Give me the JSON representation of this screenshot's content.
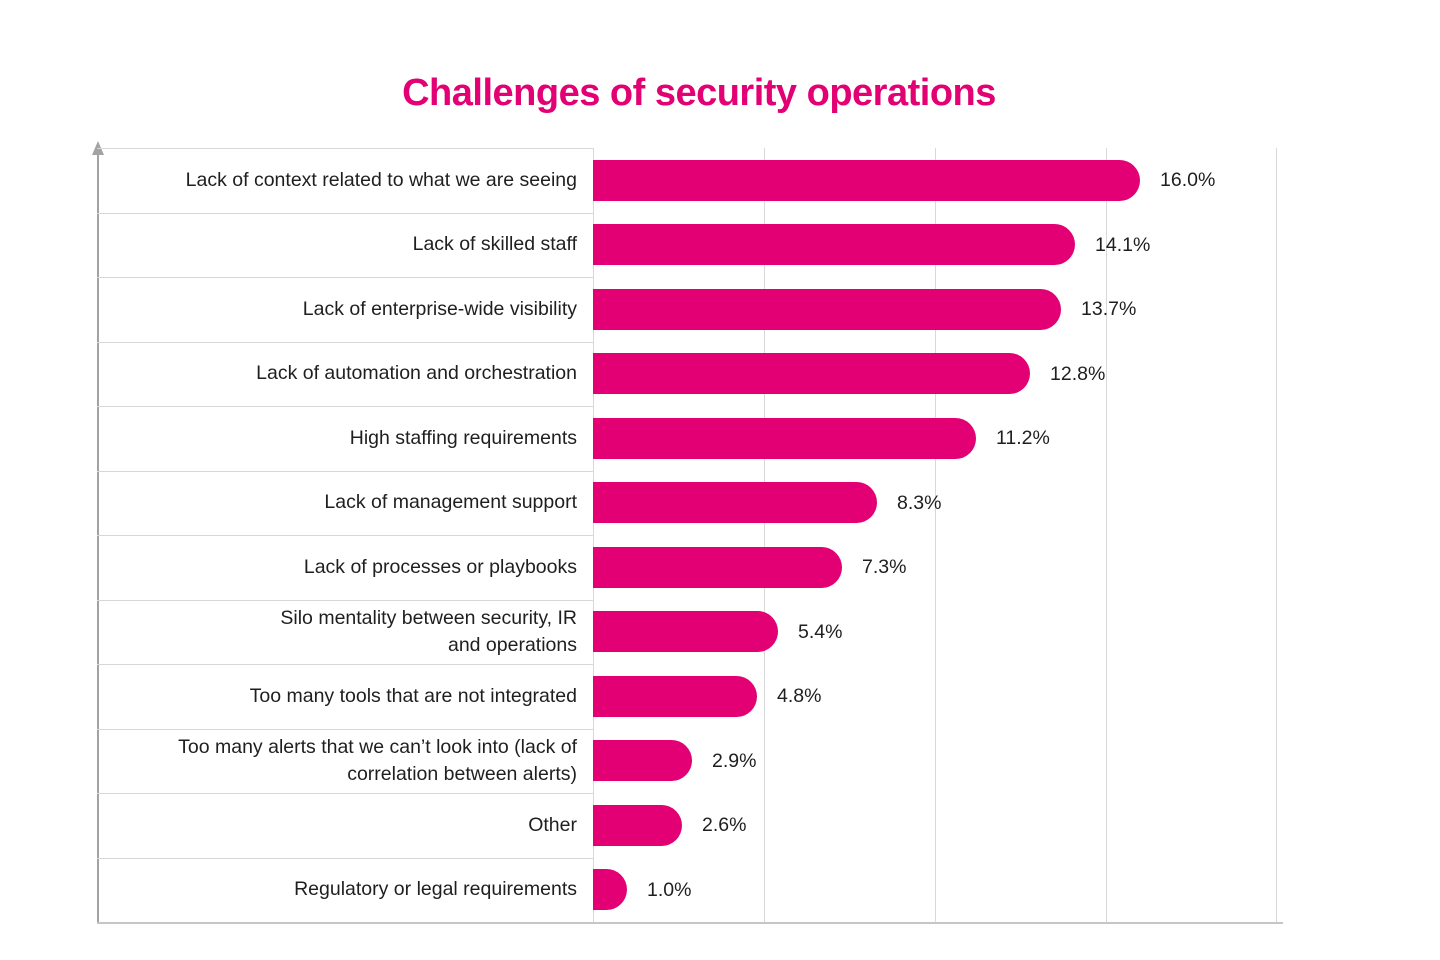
{
  "title": "Challenges of security operations",
  "colors": {
    "accent": "#E20074",
    "text": "#1F1F1F",
    "grid": "#D8D8D8",
    "axis": "#A3A3A3",
    "baseline": "#C6C6C6"
  },
  "chart_data": {
    "type": "bar",
    "orientation": "horizontal",
    "title": "Challenges of security operations",
    "xlabel": "",
    "ylabel": "",
    "xlim": [
      0,
      20
    ],
    "gridlines_pct": [
      0,
      5,
      10,
      15,
      20
    ],
    "grid": "vertical-only",
    "legend": "none",
    "value_suffix": "%",
    "categories": [
      "Lack of context related to what we are seeing",
      "Lack of skilled staff",
      "Lack of enterprise-wide visibility",
      "Lack of automation and orchestration",
      "High staffing requirements",
      "Lack of management support",
      "Lack of processes or playbooks",
      "Silo mentality between security, IR and operations",
      "Too many tools that are not integrated",
      "Too many alerts that we can’t look into (lack of correlation between alerts)",
      "Other",
      "Regulatory or legal requirements"
    ],
    "values": [
      16.0,
      14.1,
      13.7,
      12.8,
      11.2,
      8.3,
      7.3,
      5.4,
      4.8,
      2.9,
      2.6,
      1.0
    ],
    "rows": [
      {
        "label_lines": [
          "Lack of context related to what we are seeing"
        ],
        "value": 16.0,
        "value_label": "16.0%"
      },
      {
        "label_lines": [
          "Lack of skilled staff"
        ],
        "value": 14.1,
        "value_label": "14.1%"
      },
      {
        "label_lines": [
          "Lack of enterprise-wide visibility"
        ],
        "value": 13.7,
        "value_label": "13.7%"
      },
      {
        "label_lines": [
          "Lack of automation and orchestration"
        ],
        "value": 12.8,
        "value_label": "12.8%"
      },
      {
        "label_lines": [
          "High staffing requirements"
        ],
        "value": 11.2,
        "value_label": "11.2%"
      },
      {
        "label_lines": [
          "Lack of management support"
        ],
        "value": 8.3,
        "value_label": "8.3%"
      },
      {
        "label_lines": [
          "Lack of processes or playbooks"
        ],
        "value": 7.3,
        "value_label": "7.3%"
      },
      {
        "label_lines": [
          "Silo mentality between security, IR",
          "and operations"
        ],
        "value": 5.4,
        "value_label": "5.4%"
      },
      {
        "label_lines": [
          "Too many tools that are not integrated"
        ],
        "value": 4.8,
        "value_label": "4.8%"
      },
      {
        "label_lines": [
          "Too many alerts that we can’t look into (lack of",
          "correlation between alerts)"
        ],
        "value": 2.9,
        "value_label": "2.9%"
      },
      {
        "label_lines": [
          "Other"
        ],
        "value": 2.6,
        "value_label": "2.6%"
      },
      {
        "label_lines": [
          "Regulatory or legal requirements"
        ],
        "value": 1.0,
        "value_label": "1.0%"
      }
    ]
  }
}
